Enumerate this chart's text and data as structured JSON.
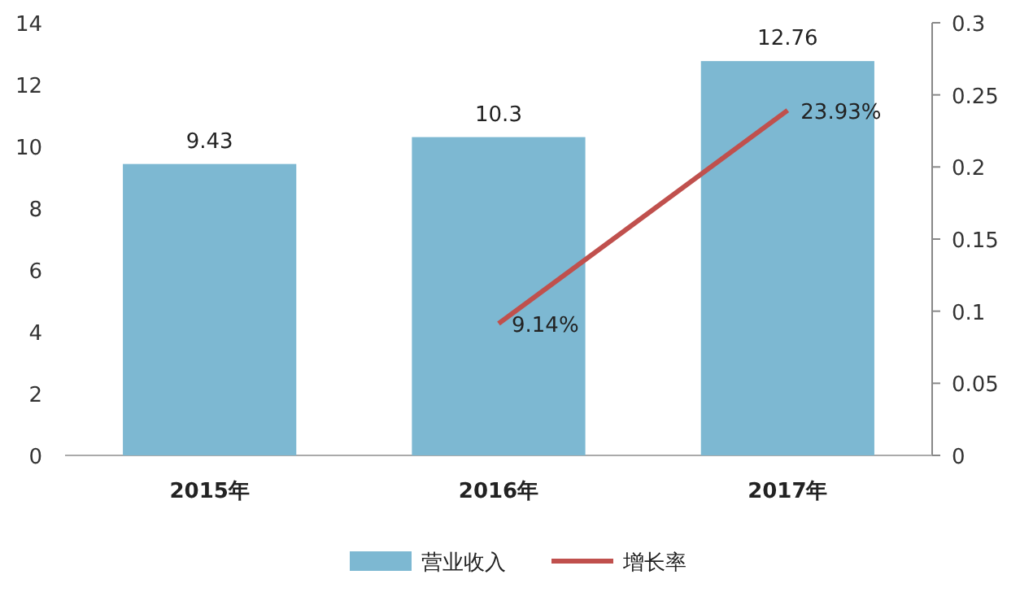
{
  "chart_data": {
    "type": "bar",
    "categories": [
      "2015年",
      "2016年",
      "2017年"
    ],
    "series": [
      {
        "name": "营业收入",
        "color": "#7db8d2",
        "values": [
          9.43,
          10.3,
          12.76
        ],
        "value_labels": [
          "9.43",
          "10.3",
          "12.76"
        ]
      },
      {
        "name": "增长率",
        "type": "line",
        "axis": "y2",
        "color": "#c0504d",
        "values": [
          null,
          0.0914,
          0.2393
        ],
        "value_labels": [
          null,
          "9.14%",
          "23.93%"
        ]
      }
    ],
    "ylim": [
      0,
      14
    ],
    "yticks": [
      0,
      2,
      4,
      6,
      8,
      10,
      12,
      14
    ],
    "y2lim": [
      0,
      0.3
    ],
    "y2ticks": [
      0,
      0.05,
      0.1,
      0.15,
      0.2,
      0.25,
      0.3
    ],
    "legend": "bottom"
  }
}
